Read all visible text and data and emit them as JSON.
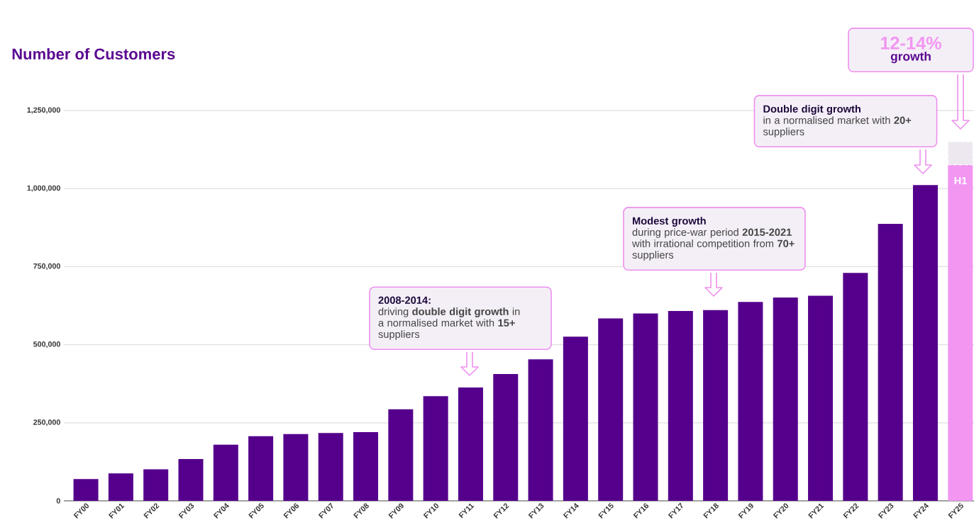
{
  "chart_data": {
    "type": "bar",
    "title": "Number of Customers",
    "categories": [
      "FY00",
      "FY01",
      "FY02",
      "FY03",
      "FY04",
      "FY05",
      "FY06",
      "FY07",
      "FY08",
      "FY09",
      "FY10",
      "FY11",
      "FY12",
      "FY13",
      "FY14",
      "FY15",
      "FY16",
      "FY17",
      "FY18",
      "FY19",
      "FY20",
      "FY21",
      "FY22",
      "FY23",
      "FY24",
      "FY25"
    ],
    "series": [
      {
        "color": "#55008c",
        "values": [
          70000,
          88000,
          101000,
          134000,
          180000,
          207000,
          214000,
          217000,
          220000,
          293000,
          335000,
          363000,
          406000,
          453000,
          526000,
          584000,
          600000,
          608000,
          611000,
          637000,
          651000,
          657000,
          730000,
          887000,
          1011000,
          null
        ]
      },
      {
        "color": "#f296f2",
        "values": [
          null,
          null,
          null,
          null,
          null,
          null,
          null,
          null,
          null,
          null,
          null,
          null,
          null,
          null,
          null,
          null,
          null,
          null,
          null,
          null,
          null,
          null,
          null,
          null,
          null,
          1076000
        ]
      },
      {
        "color": "#ede8f0",
        "values": [
          null,
          null,
          null,
          null,
          null,
          null,
          null,
          null,
          null,
          null,
          null,
          null,
          null,
          null,
          null,
          null,
          null,
          null,
          null,
          null,
          null,
          null,
          null,
          null,
          null,
          74000
        ]
      }
    ],
    "stacked": true,
    "ylim": [
      0,
      1250000
    ],
    "yticks": [
      0,
      {
        "value": 250000,
        "label": "250,000"
      },
      {
        "value": 500000,
        "label": "500,000"
      },
      {
        "value": 750000,
        "label": "750,000"
      },
      {
        "value": 1000000,
        "label": "1,000,000"
      },
      {
        "value": 1250000,
        "label": "1,250,000"
      }
    ],
    "grid": "y",
    "annotations": [
      "2008-2014:",
      "driving **double digit growth** in a normalised market with **15+** suppliers",
      "Modest growth",
      "during price-war period **2015-2021** with irrational competition from **70+** suppliers",
      "Double digit growth",
      "in a normalised market with **20+** suppliers",
      "12-14%",
      "growth",
      "H1"
    ]
  }
}
